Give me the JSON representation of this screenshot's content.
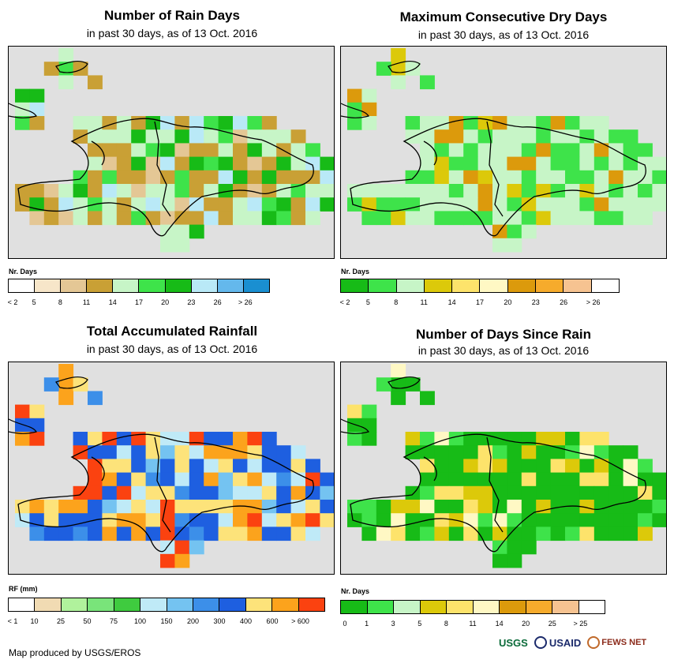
{
  "panels": [
    {
      "id": "rain-days",
      "title": "Number of Rain Days",
      "subtitle": "in past 30 days, as of 13 Oct. 2016",
      "legend_title": "Nr. Days",
      "legend_colors": [
        "#ffffff",
        "#f7e6c9",
        "#e4c795",
        "#c9a035",
        "#c7f5c7",
        "#3ee34a",
        "#17bb17",
        "#b9e9f7",
        "#64b8ec",
        "#1a8fd1"
      ],
      "legend_labels": [
        "< 2",
        "5",
        "8",
        "11",
        "14",
        "17",
        "20",
        "23",
        "26",
        "> 26"
      ]
    },
    {
      "id": "dry-days",
      "title": "Maximum Consecutive Dry Days",
      "subtitle": "in past 30 days, as of 13 Oct. 2016",
      "legend_title": "Nr. Days",
      "legend_colors": [
        "#17bb17",
        "#3ee34a",
        "#c7f5c7",
        "#dcc90a",
        "#fde36b",
        "#fff8c4",
        "#dc9a0c",
        "#f6ab2c",
        "#f6c391",
        "#ffffff"
      ],
      "legend_labels": [
        "< 2",
        "5",
        "8",
        "11",
        "14",
        "17",
        "20",
        "23",
        "26",
        "> 26"
      ]
    },
    {
      "id": "rainfall",
      "title": "Total Accumulated Rainfall",
      "subtitle": "in past 30 days, as of 13 Oct. 2016",
      "legend_title": "RF (mm)",
      "legend_colors": [
        "#ffffff",
        "#f1dbb3",
        "#b0f29c",
        "#79e47a",
        "#3fcb3f",
        "#bfeaf7",
        "#74c3f1",
        "#3c8fe9",
        "#1e5fe0",
        "#fde37a",
        "#fca31c",
        "#fb4210"
      ],
      "legend_labels": [
        "< 1",
        "10",
        "25",
        "50",
        "75",
        "100",
        "150",
        "200",
        "300",
        "400",
        "600",
        "> 600"
      ]
    },
    {
      "id": "days-since-rain",
      "title": "Number of Days Since Rain",
      "subtitle": "in past 30 days, as of 13 Oct. 2016",
      "legend_title": "Nr. Days",
      "legend_colors": [
        "#17bb17",
        "#3ee34a",
        "#c7f5c7",
        "#dcc90a",
        "#fde36b",
        "#fff8c4",
        "#dc9a0c",
        "#f6ab2c",
        "#f6c391",
        "#ffffff"
      ],
      "legend_labels": [
        "0",
        "1",
        "3",
        "5",
        "8",
        "11",
        "14",
        "20",
        "25",
        "> 25"
      ]
    }
  ],
  "credit": "Map produced by USGS/EROS",
  "logos": [
    "USGS",
    "USAID",
    "FEWS NET"
  ]
}
